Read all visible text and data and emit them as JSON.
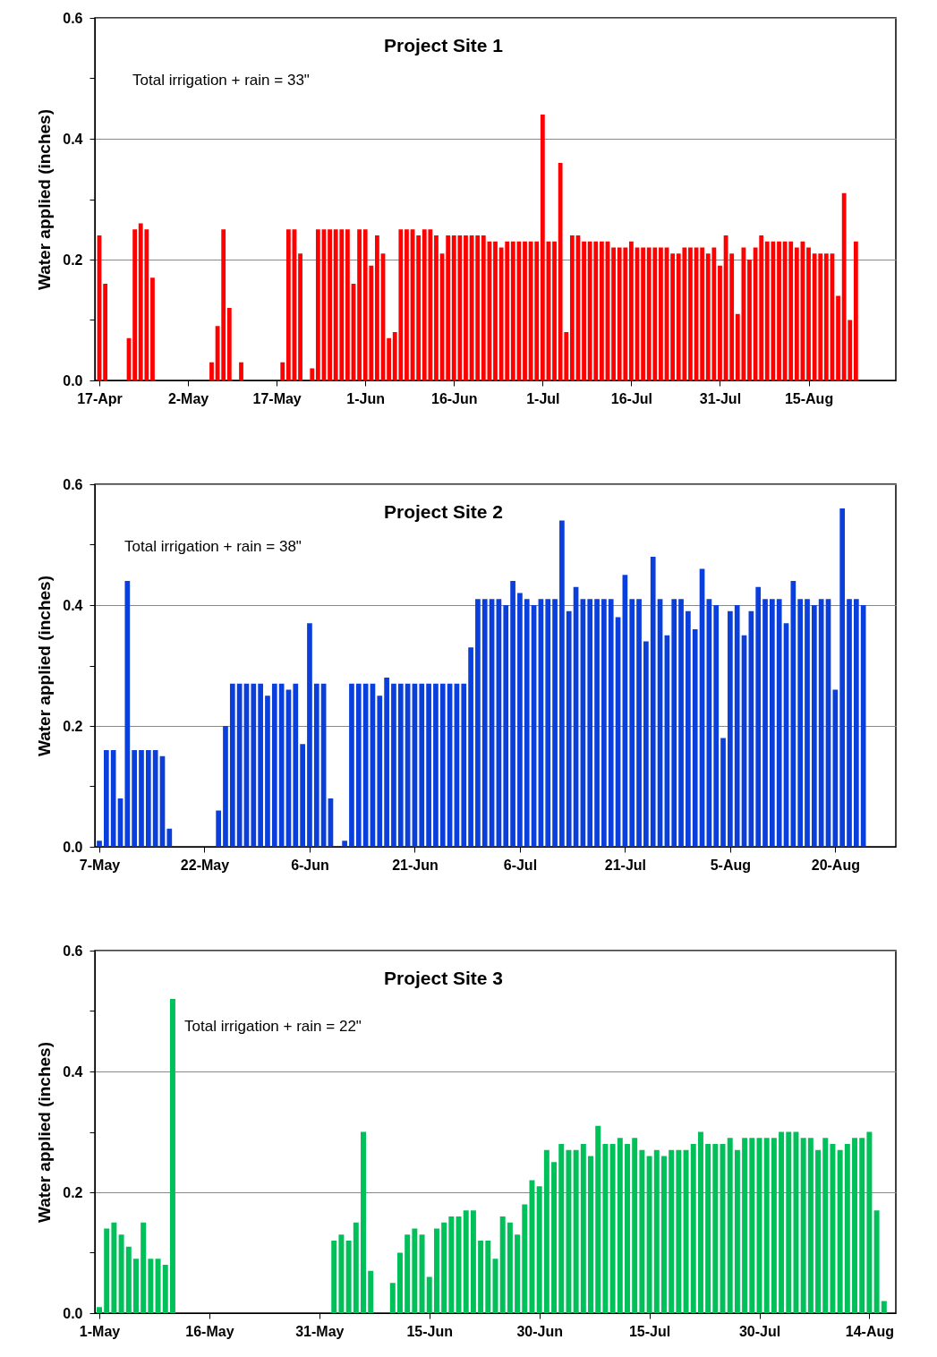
{
  "chart_data": [
    {
      "type": "bar",
      "title": "Project Site 1",
      "ylabel": "Water applied (inches)",
      "annotations": [
        "Total irrigation + rain = 33\""
      ],
      "color": "#ff0000",
      "grid": "y",
      "xlim": [
        "--04-17",
        "--08-29"
      ],
      "ylim": [
        0,
        0.6
      ],
      "xticks": [
        {
          "value": "--04-17",
          "label": "17-Apr"
        },
        {
          "value": "--05-02",
          "label": "2-May"
        },
        {
          "value": "--05-17",
          "label": "17-May"
        },
        {
          "value": "--06-01",
          "label": "1-Jun"
        },
        {
          "value": "--06-16",
          "label": "16-Jun"
        },
        {
          "value": "--07-01",
          "label": "1-Jul"
        },
        {
          "value": "--07-16",
          "label": "16-Jul"
        },
        {
          "value": "--07-31",
          "label": "31-Jul"
        },
        {
          "value": "--08-15",
          "label": "15-Aug"
        }
      ],
      "yticks": [
        {
          "value": 0,
          "label": "0.0"
        },
        {
          "value": 0.1,
          "label": null
        },
        0.2,
        {
          "value": 0.3,
          "label": null
        },
        0.4,
        {
          "value": 0.5,
          "label": null
        },
        0.6
      ],
      "x": [
        "--04-17",
        "--04-18",
        "--04-19",
        "--04-20",
        "--04-21",
        "--04-22",
        "--04-23",
        "--04-24",
        "--04-25",
        "--04-26",
        "--04-27",
        "--04-28",
        "--04-29",
        "--04-30",
        "--05-01",
        "--05-02",
        "--05-03",
        "--05-04",
        "--05-05",
        "--05-06",
        "--05-07",
        "--05-08",
        "--05-09",
        "--05-10",
        "--05-11",
        "--05-12",
        "--05-13",
        "--05-14",
        "--05-15",
        "--05-16",
        "--05-17",
        "--05-18",
        "--05-19",
        "--05-20",
        "--05-21",
        "--05-22",
        "--05-23",
        "--05-24",
        "--05-25",
        "--05-26",
        "--05-27",
        "--05-28",
        "--05-29",
        "--05-30",
        "--05-31",
        "--06-01",
        "--06-02",
        "--06-03",
        "--06-04",
        "--06-05",
        "--06-06",
        "--06-07",
        "--06-08",
        "--06-09",
        "--06-10",
        "--06-11",
        "--06-12",
        "--06-13",
        "--06-14",
        "--06-15",
        "--06-16",
        "--06-17",
        "--06-18",
        "--06-19",
        "--06-20",
        "--06-21",
        "--06-22",
        "--06-23",
        "--06-24",
        "--06-25",
        "--06-26",
        "--06-27",
        "--06-28",
        "--06-29",
        "--06-30",
        "--07-01",
        "--07-02",
        "--07-03",
        "--07-04",
        "--07-05",
        "--07-06",
        "--07-07",
        "--07-08",
        "--07-09",
        "--07-10",
        "--07-11",
        "--07-12",
        "--07-13",
        "--07-14",
        "--07-15",
        "--07-16",
        "--07-17",
        "--07-18",
        "--07-19",
        "--07-20",
        "--07-21",
        "--07-22",
        "--07-23",
        "--07-24",
        "--07-25",
        "--07-26",
        "--07-27",
        "--07-28",
        "--07-29",
        "--07-30",
        "--07-31",
        "--08-01",
        "--08-02",
        "--08-03",
        "--08-04",
        "--08-05",
        "--08-06",
        "--08-07",
        "--08-08",
        "--08-09",
        "--08-10",
        "--08-11",
        "--08-12",
        "--08-13",
        "--08-14",
        "--08-15",
        "--08-16",
        "--08-17",
        "--08-18",
        "--08-19",
        "--08-20",
        "--08-21",
        "--08-22",
        "--08-23"
      ],
      "values": [
        0.24,
        0.16,
        null,
        null,
        null,
        0.07,
        0.25,
        0.26,
        0.25,
        0.17,
        null,
        null,
        null,
        null,
        null,
        null,
        null,
        null,
        null,
        0.03,
        0.09,
        0.25,
        0.12,
        null,
        0.03,
        null,
        null,
        null,
        null,
        null,
        null,
        0.03,
        0.25,
        0.25,
        0.21,
        null,
        0.02,
        0.25,
        0.25,
        0.25,
        0.25,
        0.25,
        0.25,
        0.16,
        0.25,
        0.25,
        0.19,
        0.24,
        0.21,
        0.07,
        0.08,
        0.25,
        0.25,
        0.25,
        0.24,
        0.25,
        0.25,
        0.24,
        0.21,
        0.24,
        0.24,
        0.24,
        0.24,
        0.24,
        0.24,
        0.24,
        0.23,
        0.23,
        0.22,
        0.23,
        0.23,
        0.23,
        0.23,
        0.23,
        0.23,
        0.44,
        0.23,
        0.23,
        0.36,
        0.08,
        0.24,
        0.24,
        0.23,
        0.23,
        0.23,
        0.23,
        0.23,
        0.22,
        0.22,
        0.22,
        0.23,
        0.22,
        0.22,
        0.22,
        0.22,
        0.22,
        0.22,
        0.21,
        0.21,
        0.22,
        0.22,
        0.22,
        0.22,
        0.21,
        0.22,
        0.19,
        0.24,
        0.21,
        0.11,
        0.22,
        0.2,
        0.22,
        0.24,
        0.23,
        0.23,
        0.23,
        0.23,
        0.23,
        0.22,
        0.23,
        0.22,
        0.21,
        0.21,
        0.21,
        0.21,
        0.14,
        0.31,
        0.1,
        0.23
      ]
    },
    {
      "type": "bar",
      "title": "Project Site 2",
      "ylabel": "Water applied (inches)",
      "annotations": [
        "Total irrigation + rain = 38\""
      ],
      "color": "#0b3fdc",
      "grid": "y",
      "xlim": [
        "--05-07",
        "--08-28"
      ],
      "ylim": [
        0,
        0.6
      ],
      "xticks": [
        {
          "value": "--05-07",
          "label": "7-May"
        },
        {
          "value": "--05-22",
          "label": "22-May"
        },
        {
          "value": "--06-06",
          "label": "6-Jun"
        },
        {
          "value": "--06-21",
          "label": "21-Jun"
        },
        {
          "value": "--07-06",
          "label": "6-Jul"
        },
        {
          "value": "--07-21",
          "label": "21-Jul"
        },
        {
          "value": "--08-05",
          "label": "5-Aug"
        },
        {
          "value": "--08-20",
          "label": "20-Aug"
        }
      ],
      "yticks": [
        {
          "value": 0,
          "label": "0.0"
        },
        {
          "value": 0.1,
          "label": null
        },
        0.2,
        {
          "value": 0.3,
          "label": null
        },
        0.4,
        {
          "value": 0.5,
          "label": null
        },
        0.6
      ],
      "x": [
        "--05-07",
        "--05-08",
        "--05-09",
        "--05-10",
        "--05-11",
        "--05-12",
        "--05-13",
        "--05-14",
        "--05-15",
        "--05-16",
        "--05-17",
        "--05-18",
        "--05-19",
        "--05-20",
        "--05-21",
        "--05-22",
        "--05-23",
        "--05-24",
        "--05-25",
        "--05-26",
        "--05-27",
        "--05-28",
        "--05-29",
        "--05-30",
        "--05-31",
        "--06-01",
        "--06-02",
        "--06-03",
        "--06-04",
        "--06-05",
        "--06-06",
        "--06-07",
        "--06-08",
        "--06-09",
        "--06-10",
        "--06-11",
        "--06-12",
        "--06-13",
        "--06-14",
        "--06-15",
        "--06-16",
        "--06-17",
        "--06-18",
        "--06-19",
        "--06-20",
        "--06-21",
        "--06-22",
        "--06-23",
        "--06-24",
        "--06-25",
        "--06-26",
        "--06-27",
        "--06-28",
        "--06-29",
        "--06-30",
        "--07-01",
        "--07-02",
        "--07-03",
        "--07-04",
        "--07-05",
        "--07-06",
        "--07-07",
        "--07-08",
        "--07-09",
        "--07-10",
        "--07-11",
        "--07-12",
        "--07-13",
        "--07-14",
        "--07-15",
        "--07-16",
        "--07-17",
        "--07-18",
        "--07-19",
        "--07-20",
        "--07-21",
        "--07-22",
        "--07-23",
        "--07-24",
        "--07-25",
        "--07-26",
        "--07-27",
        "--07-28",
        "--07-29",
        "--07-30",
        "--07-31",
        "--08-01",
        "--08-02",
        "--08-03",
        "--08-04",
        "--08-05",
        "--08-06",
        "--08-07",
        "--08-08",
        "--08-09",
        "--08-10",
        "--08-11",
        "--08-12",
        "--08-13",
        "--08-14",
        "--08-15",
        "--08-16",
        "--08-17",
        "--08-18",
        "--08-19",
        "--08-20",
        "--08-21",
        "--08-22",
        "--08-23",
        "--08-24"
      ],
      "values": [
        0.01,
        0.16,
        0.16,
        0.08,
        0.44,
        0.16,
        0.16,
        0.16,
        0.16,
        0.15,
        0.03,
        null,
        null,
        null,
        null,
        null,
        null,
        0.06,
        0.2,
        0.27,
        0.27,
        0.27,
        0.27,
        0.27,
        0.25,
        0.27,
        0.27,
        0.26,
        0.27,
        0.17,
        0.37,
        0.27,
        0.27,
        0.08,
        null,
        0.01,
        0.27,
        0.27,
        0.27,
        0.27,
        0.25,
        0.28,
        0.27,
        0.27,
        0.27,
        0.27,
        0.27,
        0.27,
        0.27,
        0.27,
        0.27,
        0.27,
        0.27,
        0.33,
        0.41,
        0.41,
        0.41,
        0.41,
        0.4,
        0.44,
        0.42,
        0.41,
        0.4,
        0.41,
        0.41,
        0.41,
        0.54,
        0.39,
        0.43,
        0.41,
        0.41,
        0.41,
        0.41,
        0.41,
        0.38,
        0.45,
        0.41,
        0.41,
        0.34,
        0.48,
        0.41,
        0.35,
        0.41,
        0.41,
        0.39,
        0.36,
        0.46,
        0.41,
        0.4,
        0.18,
        0.39,
        0.4,
        0.35,
        0.39,
        0.43,
        0.41,
        0.41,
        0.41,
        0.37,
        0.44,
        0.41,
        0.41,
        0.4,
        0.41,
        0.41,
        0.26,
        0.56,
        0.41,
        0.41,
        0.4
      ]
    },
    {
      "type": "bar",
      "title": "Project Site 3",
      "ylabel": "Water applied (inches)",
      "annotations": [
        "Total irrigation + rain = 22\""
      ],
      "color": "#00c05a",
      "grid": "y",
      "xlim": [
        "--05-01",
        "--08-17"
      ],
      "ylim": [
        0,
        0.6
      ],
      "xticks": [
        {
          "value": "--05-01",
          "label": "1-May"
        },
        {
          "value": "--05-16",
          "label": "16-May"
        },
        {
          "value": "--05-31",
          "label": "31-May"
        },
        {
          "value": "--06-15",
          "label": "15-Jun"
        },
        {
          "value": "--06-30",
          "label": "30-Jun"
        },
        {
          "value": "--07-15",
          "label": "15-Jul"
        },
        {
          "value": "--07-30",
          "label": "30-Jul"
        },
        {
          "value": "--08-14",
          "label": "14-Aug"
        }
      ],
      "yticks": [
        {
          "value": 0,
          "label": "0.0"
        },
        {
          "value": 0.1,
          "label": null
        },
        0.2,
        {
          "value": 0.3,
          "label": null
        },
        0.4,
        {
          "value": 0.5,
          "label": null
        },
        0.6
      ],
      "x": [
        "--05-01",
        "--05-02",
        "--05-03",
        "--05-04",
        "--05-05",
        "--05-06",
        "--05-07",
        "--05-08",
        "--05-09",
        "--05-10",
        "--05-11",
        "--05-12",
        "--05-13",
        "--05-14",
        "--05-15",
        "--05-16",
        "--05-17",
        "--05-18",
        "--05-19",
        "--05-20",
        "--05-21",
        "--05-22",
        "--05-23",
        "--05-24",
        "--05-25",
        "--05-26",
        "--05-27",
        "--05-28",
        "--05-29",
        "--05-30",
        "--05-31",
        "--06-01",
        "--06-02",
        "--06-03",
        "--06-04",
        "--06-05",
        "--06-06",
        "--06-07",
        "--06-08",
        "--06-09",
        "--06-10",
        "--06-11",
        "--06-12",
        "--06-13",
        "--06-14",
        "--06-15",
        "--06-16",
        "--06-17",
        "--06-18",
        "--06-19",
        "--06-20",
        "--06-21",
        "--06-22",
        "--06-23",
        "--06-24",
        "--06-25",
        "--06-26",
        "--06-27",
        "--06-28",
        "--06-29",
        "--06-30",
        "--07-01",
        "--07-02",
        "--07-03",
        "--07-04",
        "--07-05",
        "--07-06",
        "--07-07",
        "--07-08",
        "--07-09",
        "--07-10",
        "--07-11",
        "--07-12",
        "--07-13",
        "--07-14",
        "--07-15",
        "--07-16",
        "--07-17",
        "--07-18",
        "--07-19",
        "--07-20",
        "--07-21",
        "--07-22",
        "--07-23",
        "--07-24",
        "--07-25",
        "--07-26",
        "--07-27",
        "--07-28",
        "--07-29",
        "--07-30",
        "--07-31",
        "--08-01",
        "--08-02",
        "--08-03",
        "--08-04",
        "--08-05",
        "--08-06",
        "--08-07",
        "--08-08",
        "--08-09",
        "--08-10",
        "--08-11",
        "--08-12",
        "--08-13",
        "--08-14",
        "--08-15",
        "--08-16"
      ],
      "values": [
        0.01,
        0.14,
        0.15,
        0.13,
        0.11,
        0.09,
        0.15,
        0.09,
        0.09,
        0.08,
        0.52,
        null,
        null,
        null,
        null,
        null,
        null,
        null,
        null,
        null,
        null,
        null,
        null,
        null,
        null,
        null,
        null,
        null,
        null,
        null,
        null,
        null,
        0.12,
        0.13,
        0.12,
        0.15,
        0.3,
        0.07,
        null,
        null,
        0.05,
        0.1,
        0.13,
        0.14,
        0.13,
        0.06,
        0.14,
        0.15,
        0.16,
        0.16,
        0.17,
        0.17,
        0.12,
        0.12,
        0.09,
        0.16,
        0.15,
        0.13,
        0.18,
        0.22,
        0.21,
        0.27,
        0.25,
        0.28,
        0.27,
        0.27,
        0.28,
        0.26,
        0.31,
        0.28,
        0.28,
        0.29,
        0.28,
        0.29,
        0.27,
        0.26,
        0.27,
        0.26,
        0.27,
        0.27,
        0.27,
        0.28,
        0.3,
        0.28,
        0.28,
        0.28,
        0.29,
        0.27,
        0.29,
        0.29,
        0.29,
        0.29,
        0.29,
        0.3,
        0.3,
        0.3,
        0.29,
        0.29,
        0.27,
        0.29,
        0.28,
        0.27,
        0.28,
        0.29,
        0.29,
        0.3,
        0.17,
        0.02
      ]
    }
  ]
}
